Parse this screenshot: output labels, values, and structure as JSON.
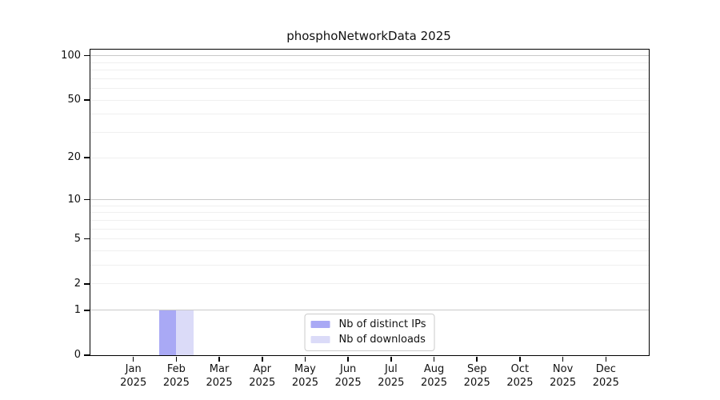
{
  "chart_data": {
    "type": "bar",
    "title": "phosphoNetworkData 2025",
    "categories": [
      "Jan",
      "Feb",
      "Mar",
      "Apr",
      "May",
      "Jun",
      "Jul",
      "Aug",
      "Sep",
      "Oct",
      "Nov",
      "Dec"
    ],
    "category_year": "2025",
    "series": [
      {
        "name": "Nb of distinct IPs",
        "color": "#a9a9f5",
        "values": [
          0,
          1,
          0,
          0,
          0,
          0,
          0,
          0,
          0,
          0,
          0,
          0
        ]
      },
      {
        "name": "Nb of downloads",
        "color": "#dbdbf8",
        "values": [
          0,
          1,
          0,
          0,
          0,
          0,
          0,
          0,
          0,
          0,
          0,
          0
        ]
      }
    ],
    "y_axis": {
      "scale": "log1p",
      "ticks": [
        0,
        1,
        2,
        5,
        10,
        20,
        50,
        100
      ],
      "ylim": [
        0,
        110
      ],
      "gridlines_major": [
        1,
        10,
        100
      ],
      "gridlines_minor": [
        2,
        3,
        4,
        5,
        6,
        7,
        8,
        9,
        20,
        30,
        40,
        50,
        60,
        70,
        80,
        90
      ]
    },
    "x_axis": {
      "label_line2": "2025"
    },
    "legend": {
      "position": "lower center"
    },
    "grid": true,
    "colors": {
      "grid_major": "#c9c9c9",
      "grid_minor": "#f0f0f0",
      "axis": "#000000",
      "text": "#111111"
    }
  }
}
